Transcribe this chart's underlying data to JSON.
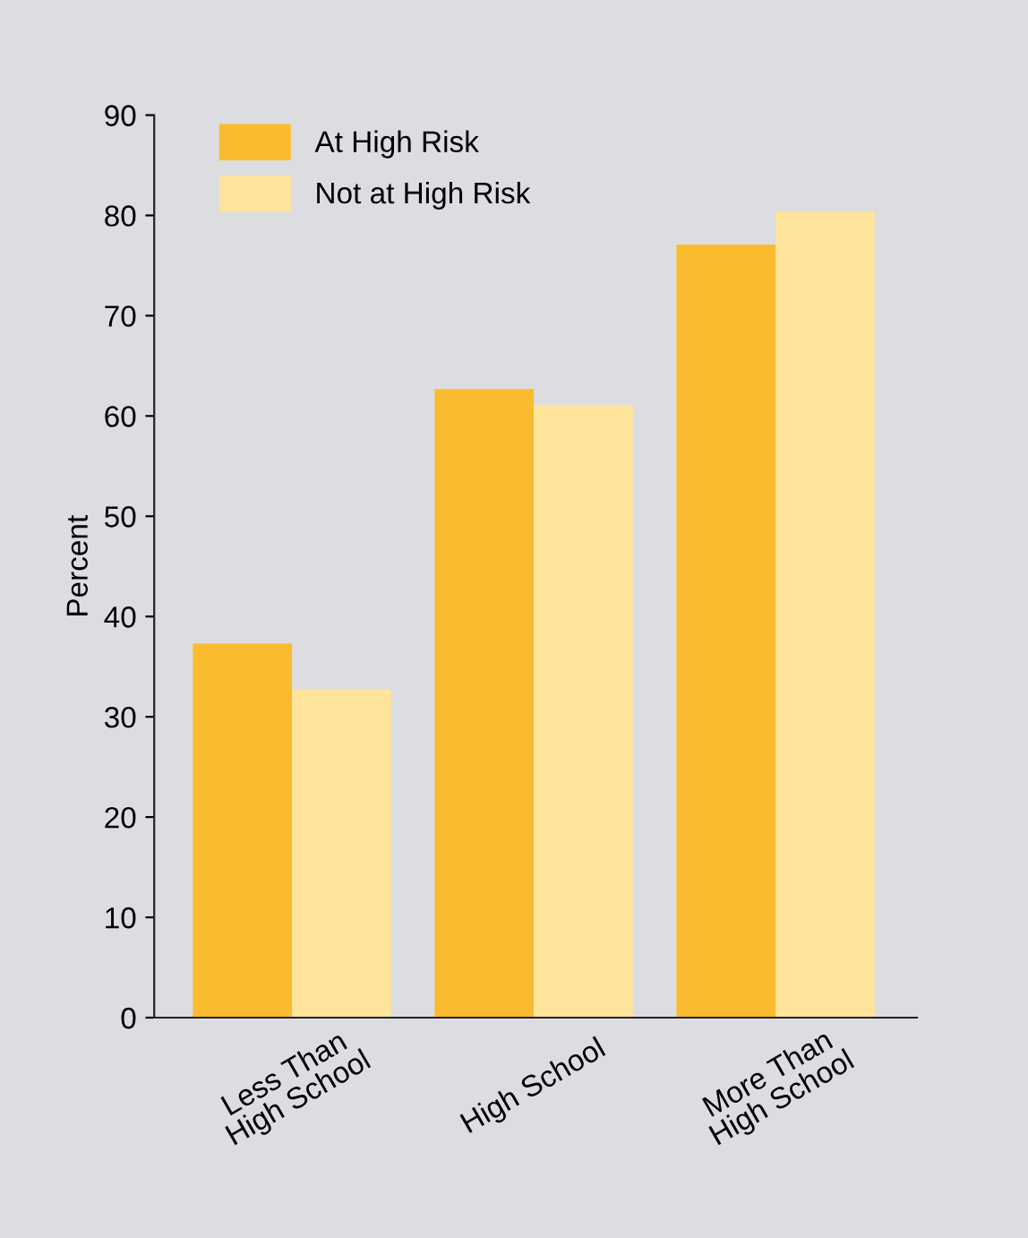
{
  "chart_data": {
    "type": "bar",
    "ylabel": "Percent",
    "categories": [
      "Less Than\nHigh School",
      "High School",
      "More Than\nHigh School"
    ],
    "series": [
      {
        "name": "At High Risk",
        "color": "#fbbb2f",
        "values": [
          37.3,
          62.7,
          77.1
        ]
      },
      {
        "name": "Not at High Risk",
        "color": "#fee49a",
        "values": [
          32.7,
          61.1,
          80.4
        ]
      }
    ],
    "ylim": [
      0,
      90
    ],
    "yticks": [
      0,
      10,
      20,
      30,
      40,
      50,
      60,
      70,
      80,
      90
    ],
    "grid": false,
    "legend": "top left"
  }
}
